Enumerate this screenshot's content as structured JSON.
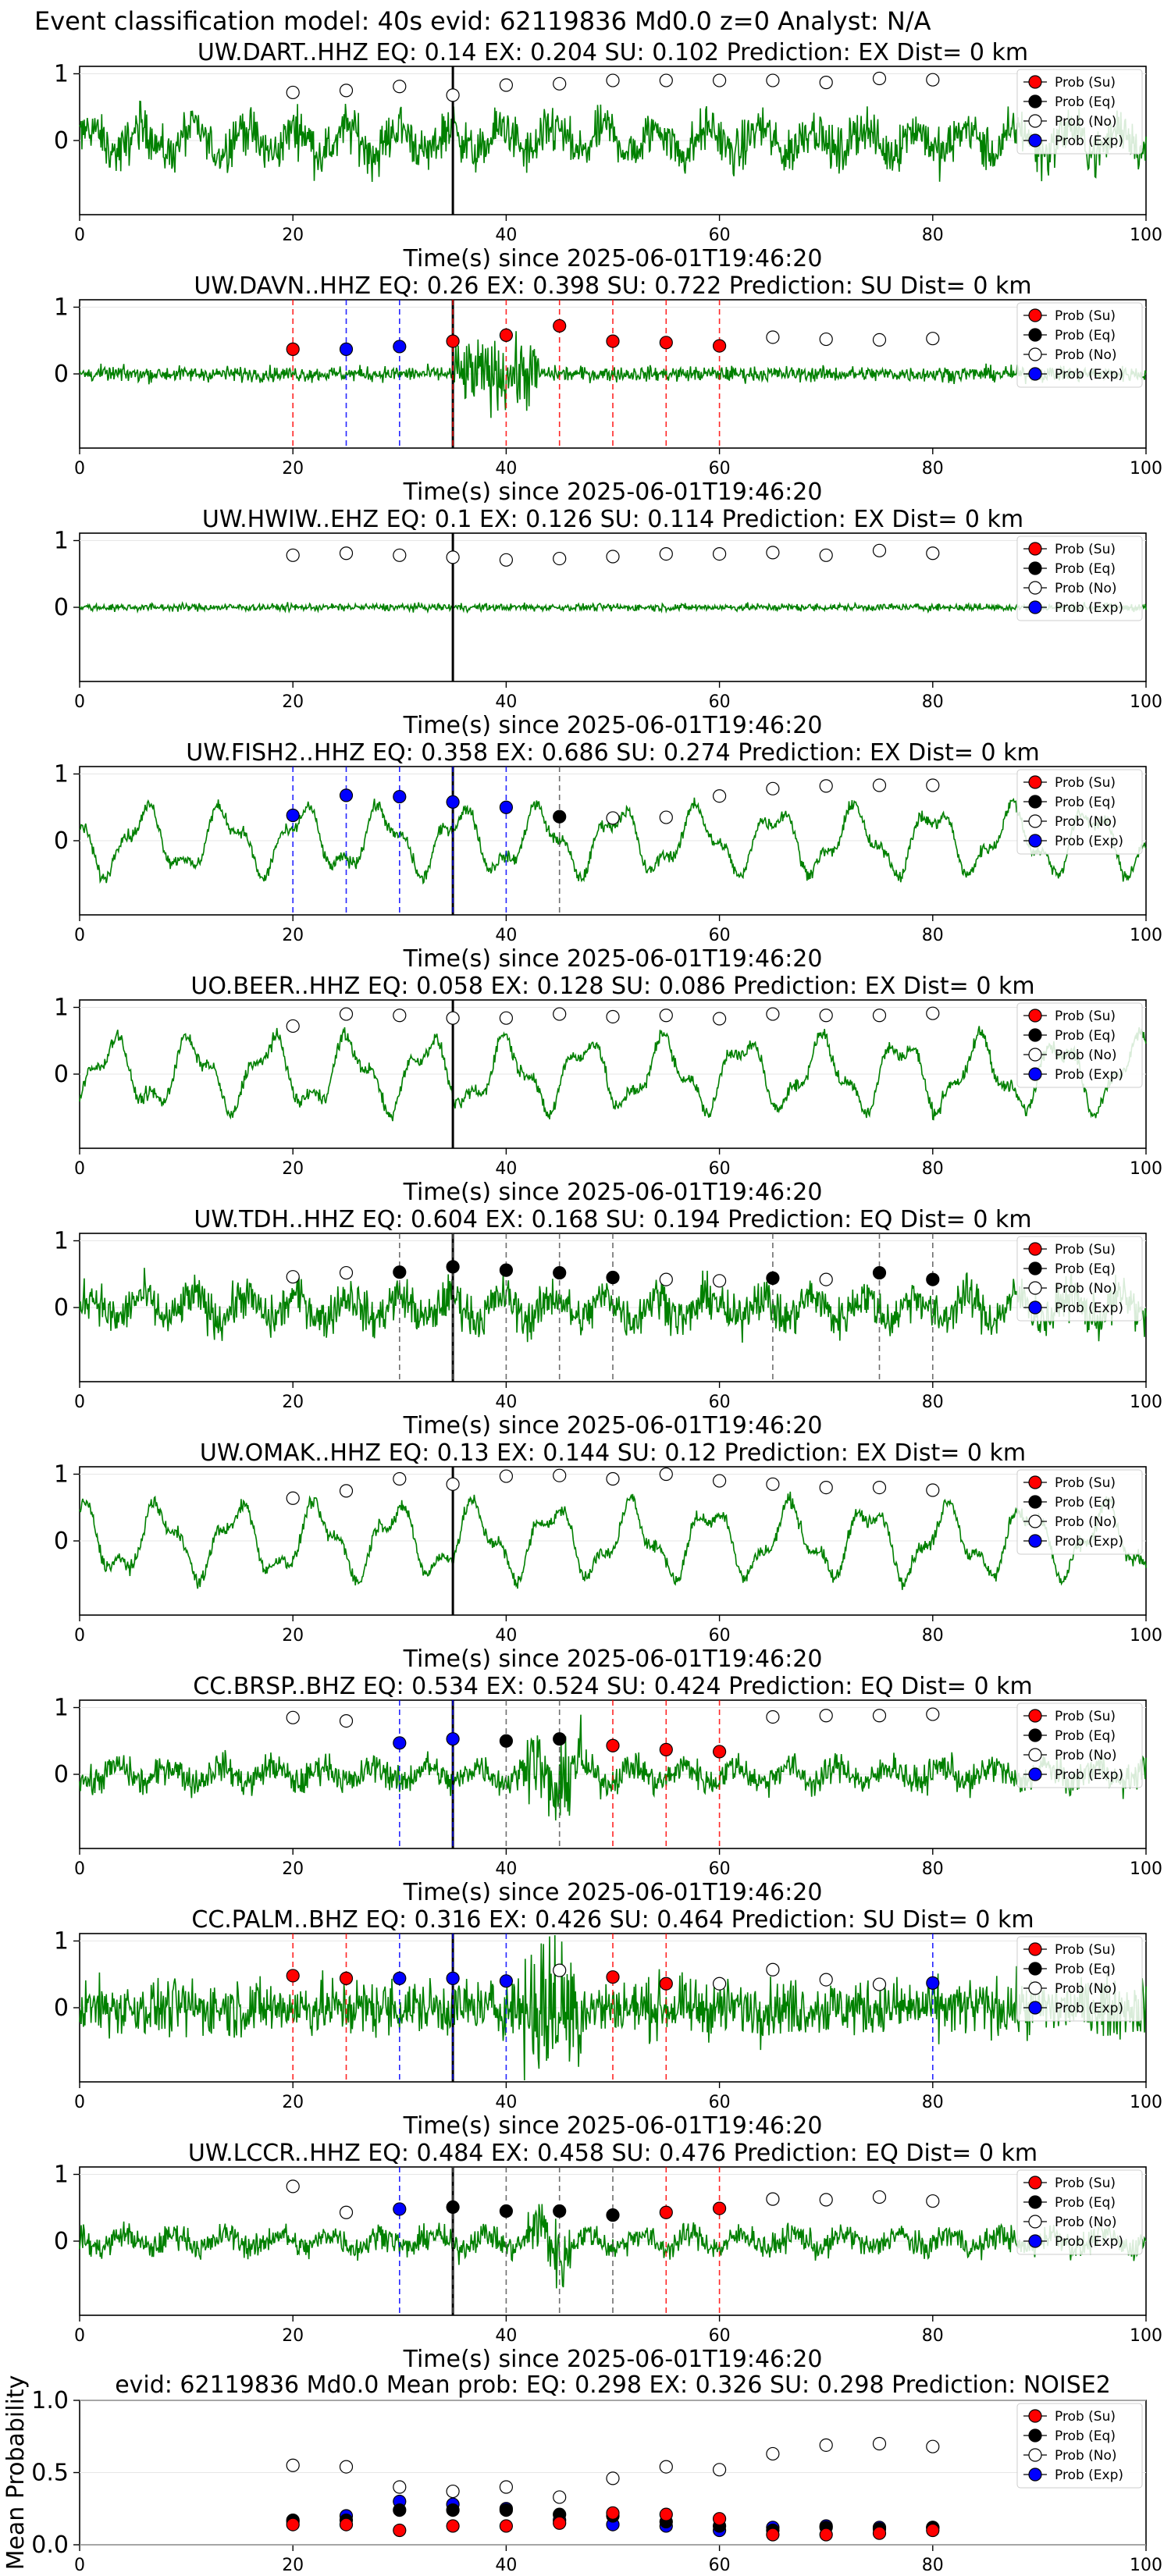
{
  "figure": {
    "suptitle": "Event classification model: 40s evid: 62119836 Md0.0 z=0 Analyst: N/A",
    "xlabel": "Time(s) since 2025-06-01T19:46:20",
    "legend": [
      "Prob (Su)",
      "Prob (Eq)",
      "Prob (No)",
      "Prob (Exp)"
    ],
    "legend_placement": "top-right",
    "x_ticks": [
      0,
      20,
      40,
      60,
      80,
      100
    ],
    "y_ticks": [
      1,
      0
    ],
    "xlim": [
      0,
      100
    ],
    "trace_color": "#008000",
    "origin_line_x": 35,
    "colors": {
      "su": "#ff0000",
      "eq": "#000000",
      "no": "#ffffff",
      "exp": "#0000ff"
    }
  },
  "chart_data": [
    {
      "type": "line",
      "title": "UW.DART..HHZ   EQ: 0.14   EX: 0.204   SU: 0.102   Prediction: EX    Dist= 0 km",
      "amp": 0.55,
      "style": "noisy",
      "event": null,
      "points": {
        "x": [
          20,
          25,
          30,
          35,
          40,
          45,
          50,
          55,
          60,
          65,
          70,
          75,
          80
        ],
        "y": [
          0.72,
          0.75,
          0.81,
          0.68,
          0.83,
          0.85,
          0.9,
          0.9,
          0.9,
          0.9,
          0.87,
          0.93,
          0.91
        ],
        "cls": [
          "no",
          "no",
          "no",
          "no",
          "no",
          "no",
          "no",
          "no",
          "no",
          "no",
          "no",
          "no",
          "no"
        ]
      }
    },
    {
      "type": "line",
      "title": "UW.DAVN..HHZ   EQ: 0.26   EX: 0.398   SU: 0.722   Prediction: SU    Dist= 0 km",
      "amp": 0.18,
      "style": "burst",
      "event": [
        35,
        43
      ],
      "points": {
        "x": [
          20,
          25,
          30,
          35,
          40,
          45,
          50,
          55,
          60,
          65,
          70,
          75,
          80
        ],
        "y": [
          0.37,
          0.37,
          0.41,
          0.49,
          0.58,
          0.72,
          0.49,
          0.47,
          0.42,
          0.55,
          0.52,
          0.51,
          0.53
        ],
        "cls": [
          "su",
          "exp",
          "exp",
          "su",
          "su",
          "su",
          "su",
          "su",
          "su",
          "no",
          "no",
          "no",
          "no"
        ]
      }
    },
    {
      "type": "line",
      "title": "UW.HWIW..EHZ   EQ: 0.1  EX: 0.126  SU: 0.114   Prediction: EX    Dist= 0 km",
      "amp": 0.08,
      "style": "flat",
      "event": null,
      "points": {
        "x": [
          20,
          25,
          30,
          35,
          40,
          45,
          50,
          55,
          60,
          65,
          70,
          75,
          80
        ],
        "y": [
          0.78,
          0.81,
          0.78,
          0.75,
          0.71,
          0.73,
          0.76,
          0.8,
          0.8,
          0.82,
          0.78,
          0.85,
          0.81
        ],
        "cls": [
          "no",
          "no",
          "no",
          "no",
          "no",
          "no",
          "no",
          "no",
          "no",
          "no",
          "no",
          "no",
          "no"
        ]
      }
    },
    {
      "type": "line",
      "title": "UW.FISH2..HHZ   EQ: 0.358  EX: 0.686  SU: 0.274   Prediction: EX    Dist= 0 km",
      "amp": 0.55,
      "style": "wave",
      "event": null,
      "points": {
        "x": [
          20,
          25,
          30,
          35,
          40,
          45,
          50,
          55,
          60,
          65,
          70,
          75,
          80
        ],
        "y": [
          0.38,
          0.68,
          0.66,
          0.58,
          0.5,
          0.36,
          0.34,
          0.35,
          0.67,
          0.78,
          0.82,
          0.83,
          0.83
        ],
        "cls": [
          "exp",
          "exp",
          "exp",
          "exp",
          "exp",
          "eq",
          "no",
          "no",
          "no",
          "no",
          "no",
          "no",
          "no"
        ]
      }
    },
    {
      "type": "line",
      "title": "UO.BEER..HHZ   EQ: 0.058  EX: 0.128  SU: 0.086   Prediction: EX    Dist= 0 km",
      "amp": 0.6,
      "style": "wave",
      "event": null,
      "points": {
        "x": [
          20,
          25,
          30,
          35,
          40,
          45,
          50,
          55,
          60,
          65,
          70,
          75,
          80
        ],
        "y": [
          0.72,
          0.9,
          0.88,
          0.84,
          0.84,
          0.9,
          0.86,
          0.88,
          0.83,
          0.9,
          0.88,
          0.88,
          0.91
        ],
        "cls": [
          "no",
          "no",
          "no",
          "no",
          "no",
          "no",
          "no",
          "no",
          "no",
          "no",
          "no",
          "no",
          "no"
        ]
      }
    },
    {
      "type": "line",
      "title": "UW.TDH..HHZ   EQ: 0.604  EX: 0.168  SU: 0.194   Prediction: EQ    Dist= 0 km",
      "amp": 0.5,
      "style": "noisy",
      "event": null,
      "points": {
        "x": [
          20,
          25,
          30,
          35,
          40,
          45,
          50,
          55,
          60,
          65,
          70,
          75,
          80
        ],
        "y": [
          0.46,
          0.52,
          0.53,
          0.61,
          0.56,
          0.52,
          0.45,
          0.42,
          0.4,
          0.44,
          0.42,
          0.52,
          0.42
        ],
        "cls": [
          "no",
          "no",
          "eq",
          "eq",
          "eq",
          "eq",
          "eq",
          "no",
          "no",
          "eq",
          "no",
          "eq",
          "eq"
        ]
      }
    },
    {
      "type": "line",
      "title": "UW.OMAK..HHZ   EQ: 0.13  EX: 0.144  SU: 0.12   Prediction: EX    Dist= 0 km",
      "amp": 0.6,
      "style": "wave",
      "event": null,
      "points": {
        "x": [
          20,
          25,
          30,
          35,
          40,
          45,
          50,
          55,
          60,
          65,
          70,
          75,
          80
        ],
        "y": [
          0.64,
          0.75,
          0.93,
          0.85,
          0.97,
          0.98,
          0.93,
          1.0,
          0.9,
          0.85,
          0.8,
          0.8,
          0.76
        ],
        "cls": [
          "no",
          "no",
          "no",
          "no",
          "no",
          "no",
          "no",
          "no",
          "no",
          "no",
          "no",
          "no",
          "no"
        ]
      }
    },
    {
      "type": "line",
      "title": "CC.BRSP..BHZ   EQ: 0.534  EX: 0.524  SU: 0.424   Prediction: EQ    Dist= 0 km",
      "amp": 0.35,
      "style": "noisy",
      "event": [
        42,
        47
      ],
      "points": {
        "x": [
          20,
          25,
          30,
          35,
          40,
          45,
          50,
          55,
          60,
          65,
          70,
          75,
          80
        ],
        "y": [
          0.85,
          0.8,
          0.47,
          0.53,
          0.5,
          0.53,
          0.43,
          0.37,
          0.34,
          0.86,
          0.88,
          0.88,
          0.9
        ],
        "cls": [
          "no",
          "no",
          "exp",
          "exp",
          "eq",
          "eq",
          "su",
          "su",
          "su",
          "no",
          "no",
          "no",
          "no"
        ]
      }
    },
    {
      "type": "line",
      "title": "CC.PALM..BHZ   EQ: 0.316  EX: 0.426  SU: 0.464   Prediction: SU    Dist= 0 km",
      "amp": 0.4,
      "style": "dense",
      "event": [
        41,
        47
      ],
      "points": {
        "x": [
          20,
          25,
          30,
          35,
          40,
          45,
          50,
          55,
          60,
          65,
          70,
          75,
          80
        ],
        "y": [
          0.48,
          0.44,
          0.44,
          0.44,
          0.4,
          0.56,
          0.46,
          0.36,
          0.36,
          0.57,
          0.42,
          0.35,
          0.37
        ],
        "cls": [
          "su",
          "su",
          "exp",
          "exp",
          "exp",
          "no",
          "su",
          "su",
          "no",
          "no",
          "no",
          "no",
          "exp"
        ]
      }
    },
    {
      "type": "line",
      "title": "UW.LCCR..HHZ   EQ: 0.484  EX: 0.458  SU: 0.476   Prediction: EQ    Dist= 0 km",
      "amp": 0.3,
      "style": "noisy",
      "event": [
        42,
        46
      ],
      "points": {
        "x": [
          20,
          25,
          30,
          35,
          40,
          45,
          50,
          55,
          60,
          65,
          70,
          75,
          80
        ],
        "y": [
          0.82,
          0.43,
          0.48,
          0.51,
          0.45,
          0.45,
          0.39,
          0.43,
          0.49,
          0.63,
          0.62,
          0.66,
          0.6
        ],
        "cls": [
          "no",
          "no",
          "exp",
          "eq",
          "eq",
          "eq",
          "eq",
          "su",
          "su",
          "no",
          "no",
          "no",
          "no"
        ]
      }
    },
    {
      "type": "scatter",
      "title": "evid: 62119836  Md0.0   Mean prob:   EQ: 0.298  EX: 0.326  SU: 0.298   Prediction: NOISE2",
      "ylabel": "Mean Probability",
      "ylim": [
        0,
        1
      ],
      "y_ticks": [
        0.0,
        0.5,
        1.0
      ],
      "x": [
        20,
        25,
        30,
        35,
        40,
        45,
        50,
        55,
        60,
        65,
        70,
        75,
        80
      ],
      "series": [
        {
          "name": "Prob (No)",
          "cls": "no",
          "values": [
            0.55,
            0.54,
            0.4,
            0.37,
            0.4,
            0.33,
            0.46,
            0.54,
            0.52,
            0.63,
            0.69,
            0.7,
            0.68
          ]
        },
        {
          "name": "Prob (Exp)",
          "cls": "exp",
          "values": [
            0.16,
            0.2,
            0.3,
            0.28,
            0.25,
            0.17,
            0.14,
            0.13,
            0.1,
            0.12,
            0.13,
            0.12,
            0.12
          ]
        },
        {
          "name": "Prob (Eq)",
          "cls": "eq",
          "values": [
            0.17,
            0.17,
            0.24,
            0.24,
            0.24,
            0.21,
            0.2,
            0.16,
            0.13,
            0.1,
            0.12,
            0.11,
            0.12
          ]
        },
        {
          "name": "Prob (Su)",
          "cls": "su",
          "values": [
            0.14,
            0.14,
            0.1,
            0.13,
            0.13,
            0.15,
            0.22,
            0.21,
            0.18,
            0.07,
            0.07,
            0.08,
            0.1
          ]
        }
      ]
    }
  ]
}
